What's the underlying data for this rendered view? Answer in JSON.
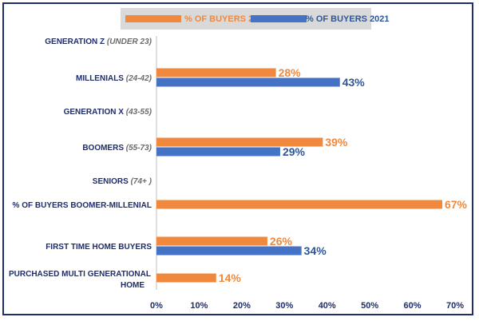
{
  "chart_data": {
    "type": "bar",
    "orientation": "horizontal",
    "categories": [
      {
        "main": "GENERATION Z",
        "sub": "(UNDER 23)"
      },
      {
        "main": "MILLENIALS",
        "sub": "(24-42)"
      },
      {
        "main": "GENERATION X",
        "sub": "(43-55)"
      },
      {
        "main": "BOOMERS",
        "sub": "(55-73)"
      },
      {
        "main": "SENIORS",
        "sub": "(74+ )"
      },
      {
        "main": "% OF BUYERS BOOMER-MILLENIAL",
        "sub": ""
      },
      {
        "main": "FIRST TIME HOME BUYERS",
        "sub": ""
      },
      {
        "main": "PURCHASED MULTI GENERATIONAL",
        "main2": "HOME",
        "sub": ""
      }
    ],
    "series": [
      {
        "name": "% OF BUYERS 2022",
        "color": "#f0883e",
        "values": [
          null,
          28,
          null,
          39,
          null,
          67,
          26,
          14
        ],
        "labels": [
          "",
          "28%",
          "",
          "39%",
          "",
          "67%",
          "26%",
          "14%"
        ]
      },
      {
        "name": "% OF BUYERS 2021",
        "color": "#4472c4",
        "values": [
          null,
          43,
          null,
          29,
          null,
          null,
          34,
          null
        ],
        "labels": [
          "",
          "43%",
          "",
          "29%",
          "",
          "",
          "34%",
          ""
        ]
      }
    ],
    "xlim": [
      0,
      70
    ],
    "x_ticks": [
      "0%",
      "10%",
      "20%",
      "30%",
      "40%",
      "50%",
      "60%",
      "70%"
    ],
    "legend": "top",
    "label_color_2021": "#2f5597"
  }
}
